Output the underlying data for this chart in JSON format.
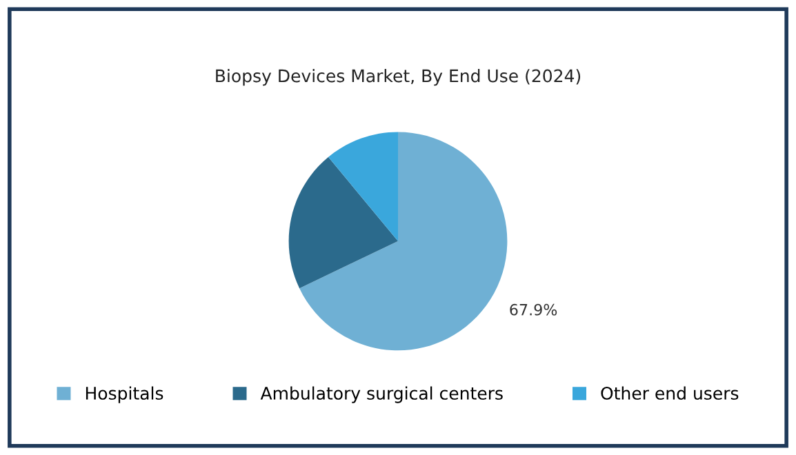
{
  "chart_data": {
    "type": "pie",
    "title": "Biopsy Devices Market, By End Use (2024)",
    "categories": [
      "Hospitals",
      "Ambulatory surgical centers",
      "Other end users"
    ],
    "values": [
      67.9,
      21.1,
      11.0
    ],
    "colors": [
      "#6fb0d4",
      "#2b6a8c",
      "#3aa7dc"
    ],
    "value_labels": [
      "67.9%",
      null,
      null
    ],
    "legend": "bottom"
  }
}
